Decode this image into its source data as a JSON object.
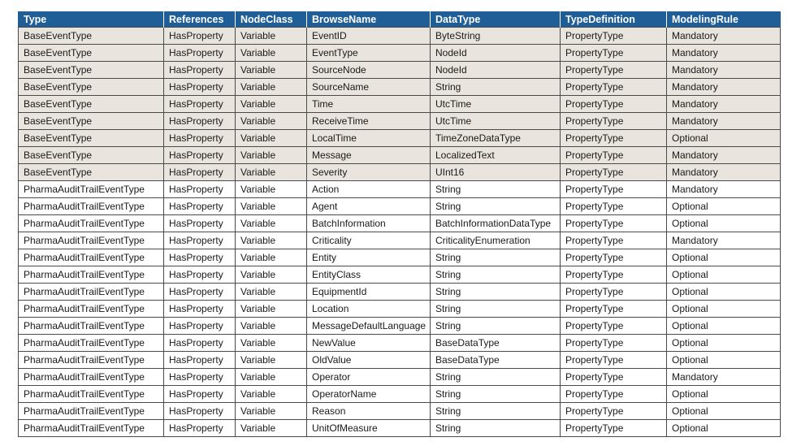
{
  "columns": [
    "Type",
    "References",
    "NodeClass",
    "BrowseName",
    "DataType",
    "TypeDefinition",
    "ModelingRule"
  ],
  "rows": [
    [
      "BaseEventType",
      "HasProperty",
      "Variable",
      "EventID",
      "ByteString",
      "PropertyType",
      "Mandatory"
    ],
    [
      "BaseEventType",
      "HasProperty",
      "Variable",
      "EventType",
      "NodeId",
      "PropertyType",
      "Mandatory"
    ],
    [
      "BaseEventType",
      "HasProperty",
      "Variable",
      "SourceNode",
      "NodeId",
      "PropertyType",
      "Mandatory"
    ],
    [
      "BaseEventType",
      "HasProperty",
      "Variable",
      "SourceName",
      "String",
      "PropertyType",
      "Mandatory"
    ],
    [
      "BaseEventType",
      "HasProperty",
      "Variable",
      "Time",
      "UtcTime",
      "PropertyType",
      "Mandatory"
    ],
    [
      "BaseEventType",
      "HasProperty",
      "Variable",
      "ReceiveTime",
      "UtcTime",
      "PropertyType",
      "Mandatory"
    ],
    [
      "BaseEventType",
      "HasProperty",
      "Variable",
      "LocalTime",
      "TimeZoneDataType",
      "PropertyType",
      "Optional"
    ],
    [
      "BaseEventType",
      "HasProperty",
      "Variable",
      "Message",
      "LocalizedText",
      "PropertyType",
      "Mandatory"
    ],
    [
      "BaseEventType",
      "HasProperty",
      "Variable",
      "Severity",
      "UInt16",
      "PropertyType",
      "Mandatory"
    ],
    [
      "PharmaAuditTrailEventType",
      "HasProperty",
      "Variable",
      "Action",
      "String",
      "PropertyType",
      "Mandatory"
    ],
    [
      "PharmaAuditTrailEventType",
      "HasProperty",
      "Variable",
      "Agent",
      "String",
      "PropertyType",
      "Optional"
    ],
    [
      "PharmaAuditTrailEventType",
      "HasProperty",
      "Variable",
      "BatchInformation",
      "BatchInformationDataType",
      "PropertyType",
      "Optional"
    ],
    [
      "PharmaAuditTrailEventType",
      "HasProperty",
      "Variable",
      "Criticality",
      "CriticalityEnumeration",
      "PropertyType",
      "Mandatory"
    ],
    [
      "PharmaAuditTrailEventType",
      "HasProperty",
      "Variable",
      "Entity",
      "String",
      "PropertyType",
      "Optional"
    ],
    [
      "PharmaAuditTrailEventType",
      "HasProperty",
      "Variable",
      "EntityClass",
      "String",
      "PropertyType",
      "Optional"
    ],
    [
      "PharmaAuditTrailEventType",
      "HasProperty",
      "Variable",
      "EquipmentId",
      "String",
      "PropertyType",
      "Optional"
    ],
    [
      "PharmaAuditTrailEventType",
      "HasProperty",
      "Variable",
      "Location",
      "String",
      "PropertyType",
      "Optional"
    ],
    [
      "PharmaAuditTrailEventType",
      "HasProperty",
      "Variable",
      "MessageDefaultLanguage",
      "String",
      "PropertyType",
      "Optional"
    ],
    [
      "PharmaAuditTrailEventType",
      "HasProperty",
      "Variable",
      "NewValue",
      "BaseDataType",
      "PropertyType",
      "Optional"
    ],
    [
      "PharmaAuditTrailEventType",
      "HasProperty",
      "Variable",
      "OldValue",
      "BaseDataType",
      "PropertyType",
      "Optional"
    ],
    [
      "PharmaAuditTrailEventType",
      "HasProperty",
      "Variable",
      "Operator",
      "String",
      "PropertyType",
      "Mandatory"
    ],
    [
      "PharmaAuditTrailEventType",
      "HasProperty",
      "Variable",
      "OperatorName",
      "String",
      "PropertyType",
      "Optional"
    ],
    [
      "PharmaAuditTrailEventType",
      "HasProperty",
      "Variable",
      "Reason",
      "String",
      "PropertyType",
      "Optional"
    ],
    [
      "PharmaAuditTrailEventType",
      "HasProperty",
      "Variable",
      "UnitOfMeasure",
      "String",
      "PropertyType",
      "Optional"
    ]
  ],
  "colors": {
    "header_bg": "#1f5e97",
    "base_row_bg": "#e9e4dd",
    "pharma_row_bg": "#ffffff"
  }
}
